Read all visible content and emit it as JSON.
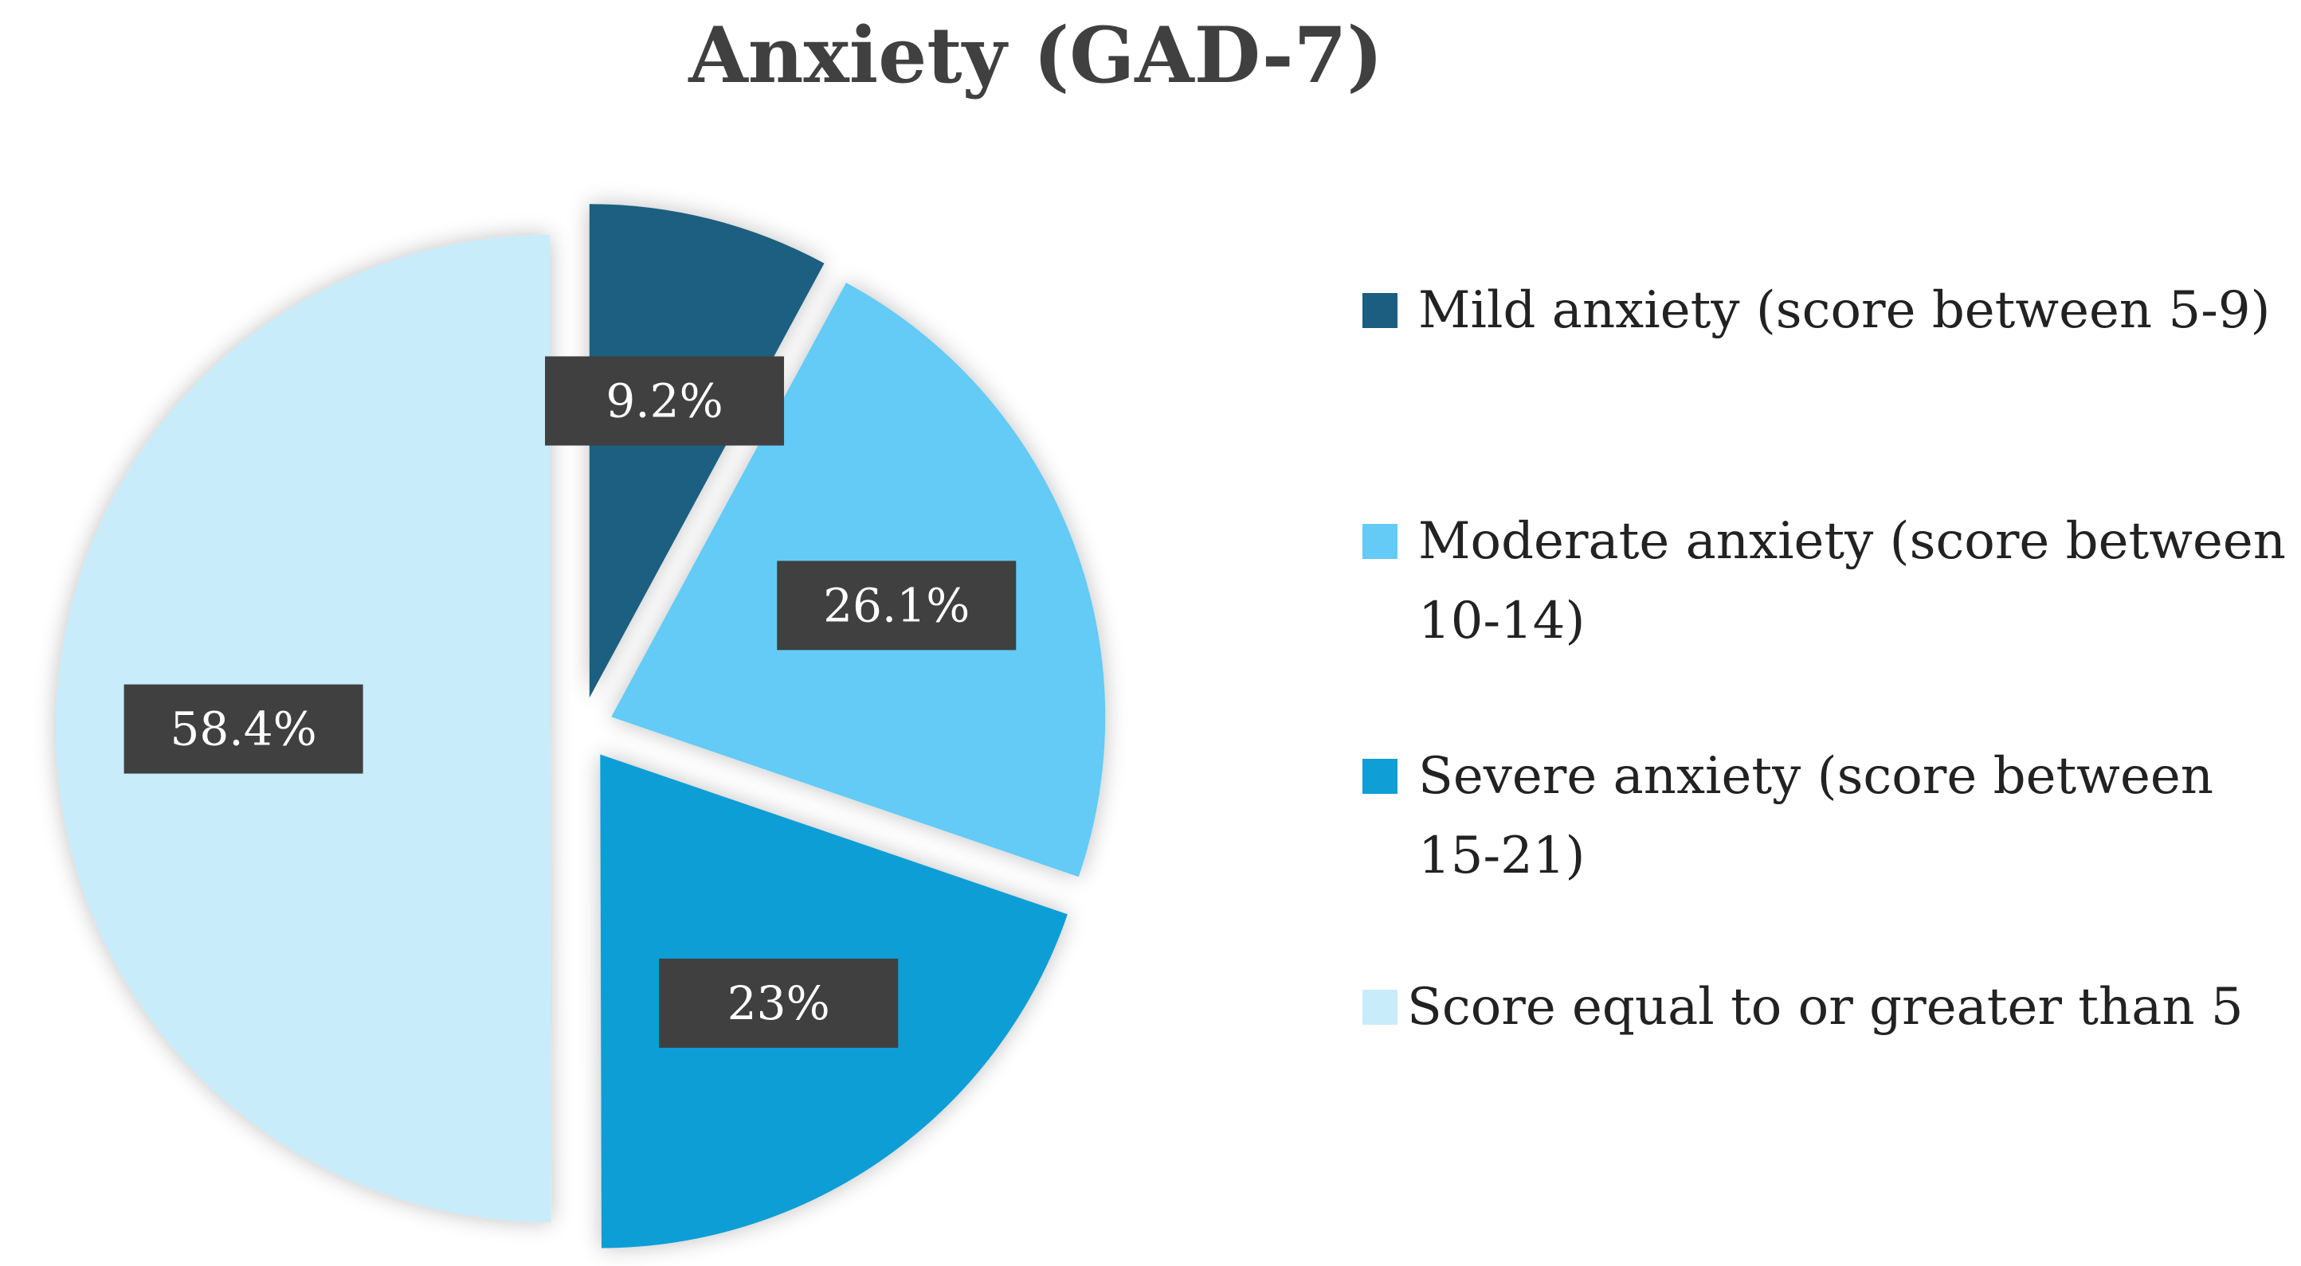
{
  "chart_data": {
    "type": "pie",
    "title": "Anxiety (GAD-7)",
    "slices": [
      {
        "label": "Mild anxiety (score between 5-9)",
        "value": 9.2,
        "data_label": "9.2%",
        "color": "#1b5e80"
      },
      {
        "label": "Moderate anxiety (score between 10-14)",
        "value": 26.1,
        "data_label": "26.1%",
        "color": "#63cbf5"
      },
      {
        "label": "Severe anxiety (score between 15-21)",
        "value": 23,
        "data_label": "23%",
        "color": "#0f9ed6"
      },
      {
        "label": "Score equal to or greater than 5",
        "value": 58.4,
        "data_label": "58.4%",
        "color": "#c8ecfa"
      }
    ],
    "legend_position": "right",
    "data_label_style": {
      "background": "#404040",
      "text_color": "#ffffff"
    }
  }
}
